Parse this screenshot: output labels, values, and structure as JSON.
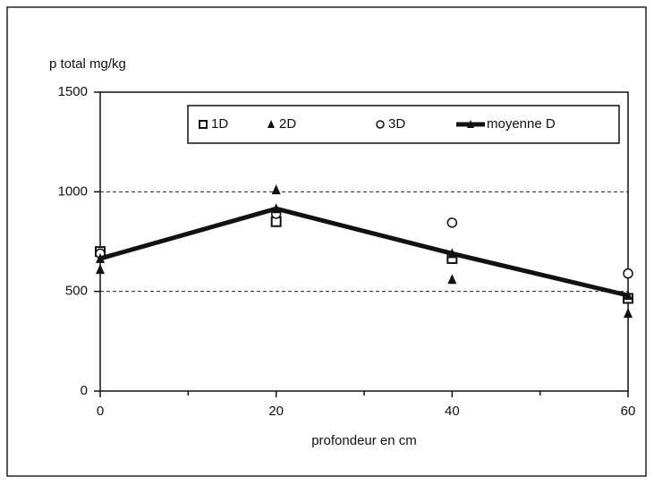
{
  "chart_data": {
    "type": "line",
    "ylabel": "p total mg/kg",
    "xlabel": "profondeur en cm",
    "x": [
      0,
      20,
      40,
      60
    ],
    "series": [
      {
        "name": "1D",
        "color": "#111111",
        "marker": "square",
        "line": false,
        "values": [
          700,
          850,
          665,
          465
        ]
      },
      {
        "name": "2D",
        "color": "#111111",
        "marker": "triangle",
        "line": false,
        "values": [
          610,
          1010,
          560,
          390
        ]
      },
      {
        "name": "3D",
        "color": "#111111",
        "marker": "circle",
        "line": false,
        "values": [
          690,
          890,
          845,
          590
        ]
      },
      {
        "name": "moyenne D",
        "color": "#111111",
        "marker": "triangle",
        "line": true,
        "values": [
          665,
          915,
          690,
          480
        ]
      }
    ],
    "xlim": [
      0,
      60
    ],
    "xticks": [
      0,
      20,
      40,
      60
    ],
    "xminorticks": [
      10,
      30,
      50
    ],
    "ylim": [
      0,
      1500
    ],
    "yticks": [
      0,
      500,
      1000,
      1500
    ],
    "grid": true,
    "legend": "top"
  }
}
